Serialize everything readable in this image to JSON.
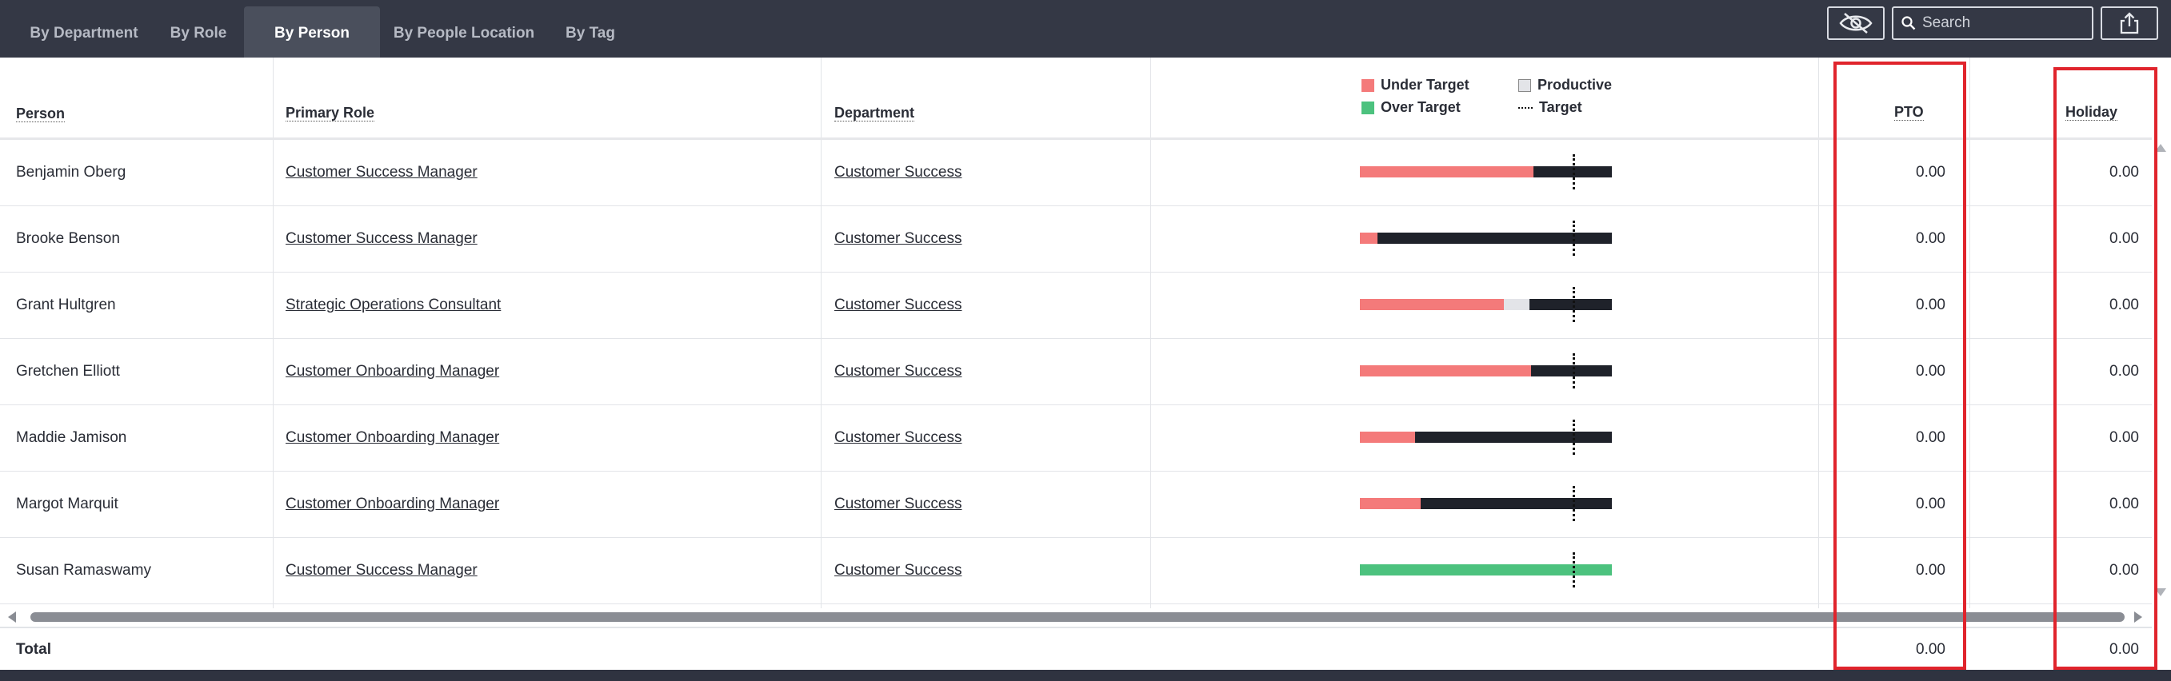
{
  "tabs": [
    {
      "label": "By Department",
      "active": false
    },
    {
      "label": "By Role",
      "active": false
    },
    {
      "label": "By Person",
      "active": true
    },
    {
      "label": "By People Location",
      "active": false
    },
    {
      "label": "By Tag",
      "active": false
    }
  ],
  "toolbar": {
    "hide_icon": "eye-slash-icon",
    "search_placeholder": "Search",
    "search_value": "",
    "export_icon": "share-export-icon"
  },
  "table": {
    "headers": {
      "person": "Person",
      "primary_role": "Primary Role",
      "department": "Department",
      "pto": "PTO",
      "holiday": "Holiday"
    },
    "legend": [
      {
        "label": "Under Target",
        "color": "#f47a7a",
        "kind": "swatch"
      },
      {
        "label": "Productive",
        "color": "#e3e4e8",
        "kind": "swatch"
      },
      {
        "label": "Over Target",
        "color": "#4cc27e",
        "kind": "swatch"
      },
      {
        "label": "Target",
        "color": "#111111",
        "kind": "dotted-line"
      }
    ],
    "rows": [
      {
        "person": "Benjamin Oberg",
        "role": "Customer Success Manager",
        "department": "Customer Success",
        "under_target": 0.69,
        "productive": 0,
        "over_target": 0,
        "pto": "0.00",
        "holiday": "0.00"
      },
      {
        "person": "Brooke Benson",
        "role": "Customer Success Manager",
        "department": "Customer Success",
        "under_target": 0.07,
        "productive": 0,
        "over_target": 0,
        "pto": "0.00",
        "holiday": "0.00"
      },
      {
        "person": "Grant Hultgren",
        "role": "Strategic Operations Consultant",
        "department": "Customer Success",
        "under_target": 0.57,
        "productive": 0.1,
        "over_target": 0,
        "pto": "0.00",
        "holiday": "0.00"
      },
      {
        "person": "Gretchen Elliott",
        "role": "Customer Onboarding Manager",
        "department": "Customer Success",
        "under_target": 0.68,
        "productive": 0,
        "over_target": 0,
        "pto": "0.00",
        "holiday": "0.00"
      },
      {
        "person": "Maddie Jamison",
        "role": "Customer Onboarding Manager",
        "department": "Customer Success",
        "under_target": 0.22,
        "productive": 0,
        "over_target": 0,
        "pto": "0.00",
        "holiday": "0.00"
      },
      {
        "person": "Margot Marquit",
        "role": "Customer Onboarding Manager",
        "department": "Customer Success",
        "under_target": 0.24,
        "productive": 0,
        "over_target": 0,
        "pto": "0.00",
        "holiday": "0.00"
      },
      {
        "person": "Susan Ramaswamy",
        "role": "Customer Success Manager",
        "department": "Customer Success",
        "under_target": 0,
        "productive": 0,
        "over_target": 1.0,
        "pto": "0.00",
        "holiday": "0.00"
      }
    ],
    "total": {
      "label": "Total",
      "pto": "0.00",
      "holiday": "0.00"
    }
  },
  "colors": {
    "under_target": "#f47a7a",
    "productive": "#e3e4e8",
    "over_target": "#4cc27e",
    "remaining": "#1f222a",
    "highlight": "#e0242c"
  }
}
